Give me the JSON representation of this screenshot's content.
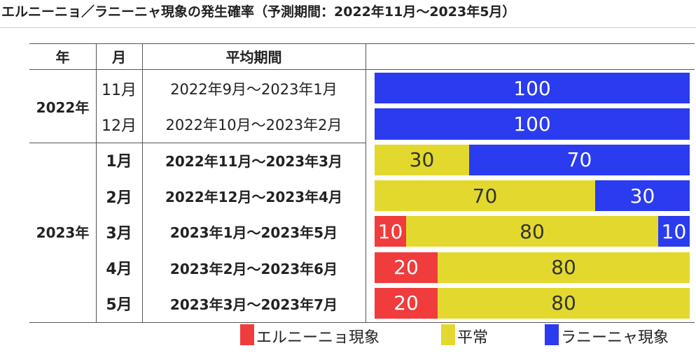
{
  "title": "エルニーニョ／ラニーニャ現象の発生確率（予測期間：2022年11月～2023年5月）",
  "headers": {
    "year": "年",
    "month": "月",
    "period": "平均期間"
  },
  "years": [
    "2022年",
    "2023年"
  ],
  "colors": {
    "el_nino": "#f03c3c",
    "normal": "#e3d92e",
    "la_nina": "#2a3bf0"
  },
  "text_colors": {
    "el_nino": "#ffffff",
    "normal": "#333333",
    "la_nina": "#ffffff"
  },
  "legend": [
    {
      "key": "el_nino",
      "label": "エルニーニョ現象"
    },
    {
      "key": "normal",
      "label": "平常"
    },
    {
      "key": "la_nina",
      "label": "ラニーニャ現象"
    }
  ],
  "chart_data": {
    "type": "bar",
    "stacked": true,
    "orientation": "horizontal",
    "unit": "%",
    "xlim": [
      0,
      100
    ],
    "categories": [
      "11月",
      "12月",
      "1月",
      "2月",
      "3月",
      "4月",
      "5月"
    ],
    "periods": [
      "2022年9月～2023年1月",
      "2022年10月～2023年2月",
      "2022年11月～2023年3月",
      "2022年12月～2023年4月",
      "2023年1月～2023年5月",
      "2023年2月～2023年6月",
      "2023年3月～2023年7月"
    ],
    "series": [
      {
        "name": "エルニーニョ現象",
        "key": "el_nino",
        "values": [
          0,
          0,
          0,
          0,
          10,
          20,
          20
        ]
      },
      {
        "name": "平常",
        "key": "normal",
        "values": [
          0,
          0,
          30,
          70,
          80,
          80,
          80
        ]
      },
      {
        "name": "ラニーニャ現象",
        "key": "la_nina",
        "values": [
          100,
          100,
          70,
          30,
          10,
          0,
          0
        ]
      }
    ]
  }
}
